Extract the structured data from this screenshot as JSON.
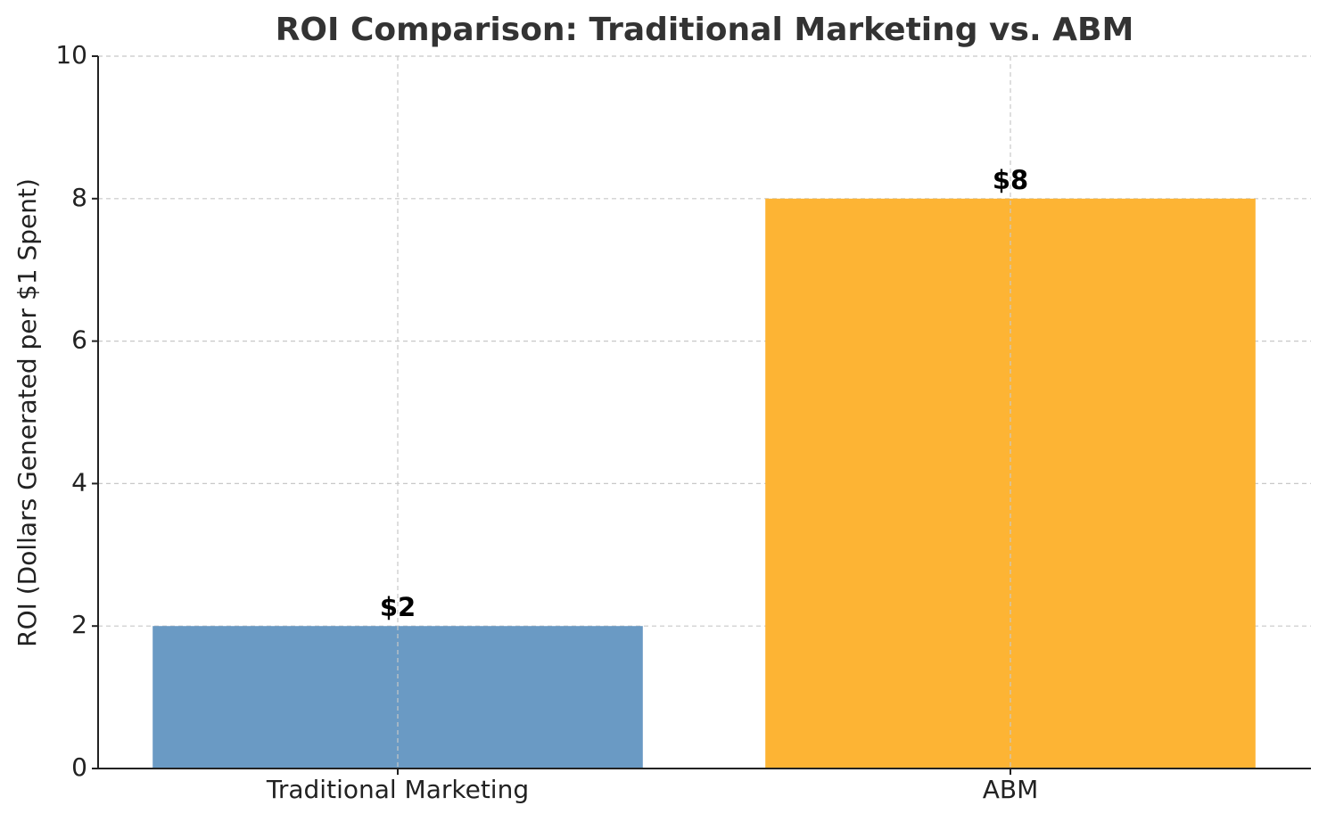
{
  "chart_data": {
    "type": "bar",
    "title": "ROI Comparison: Traditional Marketing vs. ABM",
    "y_label": "ROI (Dollars Generated per $1 Spent)",
    "categories": [
      "Traditional Marketing",
      "ABM"
    ],
    "values": [
      2,
      8
    ],
    "value_labels": [
      "$2",
      "$8"
    ],
    "colors": [
      "#6a9ac4",
      "#fdb434"
    ],
    "ylim": [
      0,
      10
    ],
    "yticks": [
      0,
      2,
      4,
      6,
      8,
      10
    ],
    "grid": true
  }
}
